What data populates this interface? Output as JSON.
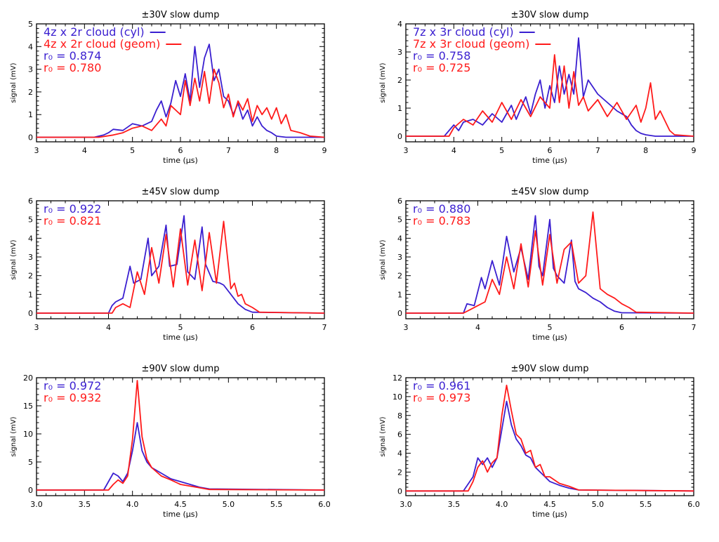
{
  "colors": {
    "blue": "#3a1fd0",
    "red": "#ff1a1a",
    "axis": "#000000"
  },
  "chart_data": [
    {
      "type": "line",
      "title": "±30V slow dump",
      "xlabel": "time (μs)",
      "ylabel": "signal (mV)",
      "xlim": [
        3,
        9
      ],
      "ylim": [
        -0.2,
        5
      ],
      "xticks": [
        "3",
        "4",
        "5",
        "6",
        "7",
        "8",
        "9"
      ],
      "yticks": [
        "0",
        "1",
        "2",
        "3",
        "4",
        "5"
      ],
      "legend": {
        "placement": "top-left",
        "lines": [
          {
            "text": "4z x 2r cloud (cyl)",
            "color": "blue",
            "swatch": true
          },
          {
            "text": "4z x 2r cloud (geom)",
            "color": "red",
            "swatch": true
          },
          {
            "text": "r₀ = 0.874",
            "color": "blue",
            "swatch": false
          },
          {
            "text": "r₀ = 0.780",
            "color": "red",
            "swatch": false
          }
        ]
      },
      "series": [
        {
          "name": "4z x 2r cloud (cyl)",
          "color": "blue",
          "x": [
            3.0,
            4.2,
            4.4,
            4.5,
            4.6,
            4.8,
            5.0,
            5.2,
            5.4,
            5.5,
            5.6,
            5.7,
            5.8,
            5.9,
            6.0,
            6.1,
            6.2,
            6.3,
            6.4,
            6.5,
            6.6,
            6.7,
            6.8,
            6.9,
            7.0,
            7.1,
            7.2,
            7.3,
            7.4,
            7.5,
            7.6,
            7.7,
            7.8,
            7.9,
            8.0,
            8.2,
            9.0
          ],
          "y": [
            0,
            0,
            0.1,
            0.2,
            0.35,
            0.3,
            0.6,
            0.5,
            0.7,
            1.2,
            1.6,
            0.9,
            1.5,
            2.5,
            1.8,
            2.8,
            1.6,
            4.0,
            2.2,
            3.5,
            4.1,
            2.5,
            3.0,
            1.8,
            1.6,
            1.0,
            1.5,
            0.8,
            1.2,
            0.5,
            0.9,
            0.5,
            0.3,
            0.2,
            0.05,
            0,
            0
          ]
        },
        {
          "name": "4z x 2r cloud (geom)",
          "color": "red",
          "x": [
            3.0,
            4.3,
            4.6,
            4.8,
            5.0,
            5.2,
            5.4,
            5.6,
            5.7,
            5.8,
            6.0,
            6.1,
            6.2,
            6.3,
            6.4,
            6.5,
            6.6,
            6.7,
            6.8,
            6.9,
            7.0,
            7.1,
            7.2,
            7.3,
            7.4,
            7.5,
            7.6,
            7.7,
            7.8,
            7.9,
            8.0,
            8.1,
            8.2,
            8.3,
            8.5,
            8.7,
            9.0
          ],
          "y": [
            0,
            0,
            0.1,
            0.2,
            0.4,
            0.5,
            0.3,
            0.8,
            0.5,
            1.4,
            1.0,
            2.5,
            1.4,
            2.6,
            1.6,
            2.9,
            1.5,
            3.0,
            2.4,
            1.3,
            1.9,
            0.9,
            1.6,
            1.2,
            1.7,
            0.7,
            1.4,
            1.0,
            1.3,
            0.8,
            1.3,
            0.6,
            1.0,
            0.3,
            0.2,
            0.05,
            0
          ]
        }
      ]
    },
    {
      "type": "line",
      "title": "±30V slow dump",
      "xlabel": "time (μs)",
      "ylabel": "signal (mV)",
      "xlim": [
        3,
        9
      ],
      "ylim": [
        -0.2,
        4
      ],
      "xticks": [
        "3",
        "4",
        "5",
        "6",
        "7",
        "8",
        "9"
      ],
      "yticks": [
        "0",
        "1",
        "2",
        "3",
        "4"
      ],
      "legend": {
        "placement": "top-left",
        "lines": [
          {
            "text": "7z x 3r cloud (cyl)",
            "color": "blue",
            "swatch": true
          },
          {
            "text": "7z x 3r cloud (geom)",
            "color": "red",
            "swatch": true
          },
          {
            "text": "r₀ = 0.758",
            "color": "blue",
            "swatch": false
          },
          {
            "text": "r₀ = 0.725",
            "color": "red",
            "swatch": false
          }
        ]
      },
      "series": [
        {
          "name": "7z x 3r cloud (cyl)",
          "color": "blue",
          "x": [
            3.0,
            3.8,
            3.9,
            4.0,
            4.1,
            4.2,
            4.4,
            4.6,
            4.8,
            5.0,
            5.2,
            5.3,
            5.5,
            5.6,
            5.7,
            5.8,
            5.9,
            6.0,
            6.1,
            6.2,
            6.3,
            6.4,
            6.5,
            6.6,
            6.7,
            6.8,
            7.0,
            7.2,
            7.4,
            7.6,
            7.7,
            7.8,
            7.9,
            8.0,
            8.2,
            9.0
          ],
          "y": [
            0,
            0,
            0.2,
            0.4,
            0.2,
            0.5,
            0.6,
            0.4,
            0.8,
            0.5,
            1.1,
            0.6,
            1.4,
            0.8,
            1.5,
            2.0,
            1.0,
            1.8,
            1.2,
            2.5,
            1.5,
            2.2,
            1.5,
            3.5,
            1.4,
            2.0,
            1.5,
            1.2,
            0.9,
            0.7,
            0.4,
            0.2,
            0.1,
            0.05,
            0,
            0
          ]
        },
        {
          "name": "7z x 3r cloud (geom)",
          "color": "red",
          "x": [
            3.0,
            3.9,
            4.0,
            4.2,
            4.4,
            4.6,
            4.8,
            5.0,
            5.2,
            5.4,
            5.6,
            5.8,
            6.0,
            6.1,
            6.2,
            6.3,
            6.4,
            6.5,
            6.6,
            6.7,
            6.8,
            7.0,
            7.2,
            7.4,
            7.6,
            7.8,
            7.9,
            8.0,
            8.1,
            8.2,
            8.3,
            8.5,
            8.6,
            9.0
          ],
          "y": [
            0,
            0,
            0.3,
            0.6,
            0.4,
            0.9,
            0.5,
            1.2,
            0.6,
            1.3,
            0.7,
            1.4,
            1.0,
            2.9,
            1.2,
            2.5,
            1.0,
            2.3,
            1.1,
            1.4,
            0.9,
            1.3,
            0.7,
            1.2,
            0.6,
            1.1,
            0.5,
            1.0,
            1.9,
            0.6,
            0.9,
            0.2,
            0.05,
            0
          ]
        }
      ]
    },
    {
      "type": "line",
      "title": "±45V slow dump",
      "xlabel": "time (μs)",
      "ylabel": "signal (mV)",
      "xlim": [
        3,
        7
      ],
      "ylim": [
        -0.3,
        6
      ],
      "xticks": [
        "3",
        "4",
        "5",
        "6",
        "7"
      ],
      "yticks": [
        "0",
        "1",
        "2",
        "3",
        "4",
        "5",
        "6"
      ],
      "legend": {
        "placement": "top-left",
        "lines": [
          {
            "text": "r₀ = 0.922",
            "color": "blue",
            "swatch": false
          },
          {
            "text": "r₀ = 0.821",
            "color": "red",
            "swatch": false
          }
        ]
      },
      "series": [
        {
          "name": "",
          "color": "blue",
          "x": [
            3.0,
            4.0,
            4.05,
            4.1,
            4.2,
            4.3,
            4.35,
            4.45,
            4.55,
            4.6,
            4.7,
            4.8,
            4.85,
            4.95,
            5.05,
            5.1,
            5.2,
            5.3,
            5.35,
            5.45,
            5.55,
            5.6,
            5.7,
            5.8,
            5.9,
            6.0,
            7.0
          ],
          "y": [
            0,
            0,
            0.4,
            0.6,
            0.8,
            2.5,
            1.6,
            1.8,
            4.0,
            2.0,
            2.5,
            4.7,
            2.5,
            2.6,
            5.2,
            2.2,
            1.8,
            4.6,
            2.6,
            1.7,
            1.6,
            1.5,
            1.0,
            0.5,
            0.2,
            0.05,
            0
          ]
        },
        {
          "name": "",
          "color": "red",
          "x": [
            3.0,
            4.05,
            4.1,
            4.2,
            4.3,
            4.4,
            4.5,
            4.6,
            4.7,
            4.8,
            4.9,
            5.0,
            5.1,
            5.2,
            5.3,
            5.4,
            5.5,
            5.6,
            5.7,
            5.75,
            5.8,
            5.85,
            5.9,
            6.0,
            6.1,
            7.0
          ],
          "y": [
            0,
            0,
            0.3,
            0.5,
            0.3,
            2.2,
            1.0,
            3.5,
            1.6,
            4.2,
            1.4,
            4.5,
            1.5,
            3.9,
            1.2,
            4.3,
            1.6,
            4.9,
            1.3,
            1.6,
            0.9,
            1.0,
            0.5,
            0.3,
            0.05,
            0
          ]
        }
      ]
    },
    {
      "type": "line",
      "title": "±45V slow dump",
      "xlabel": "time (μs)",
      "ylabel": "signal (mV)",
      "xlim": [
        3,
        7
      ],
      "ylim": [
        -0.3,
        6
      ],
      "xticks": [
        "3",
        "4",
        "5",
        "6",
        "7"
      ],
      "yticks": [
        "0",
        "1",
        "2",
        "3",
        "4",
        "5",
        "6"
      ],
      "legend": {
        "placement": "top-left",
        "lines": [
          {
            "text": "r₀ = 0.880",
            "color": "blue",
            "swatch": false
          },
          {
            "text": "r₀ = 0.783",
            "color": "red",
            "swatch": false
          }
        ]
      },
      "series": [
        {
          "name": "",
          "color": "blue",
          "x": [
            3.0,
            3.8,
            3.85,
            3.95,
            4.05,
            4.1,
            4.2,
            4.3,
            4.4,
            4.5,
            4.6,
            4.7,
            4.8,
            4.85,
            4.9,
            5.0,
            5.05,
            5.1,
            5.2,
            5.3,
            5.35,
            5.4,
            5.5,
            5.6,
            5.7,
            5.8,
            5.9,
            6.0,
            7.0
          ],
          "y": [
            0,
            0,
            0.5,
            0.4,
            1.9,
            1.3,
            2.8,
            1.5,
            4.1,
            2.2,
            3.5,
            1.8,
            5.2,
            2.5,
            2.0,
            5.0,
            2.4,
            2.0,
            1.6,
            3.9,
            1.7,
            1.3,
            1.1,
            0.8,
            0.6,
            0.3,
            0.1,
            0.02,
            0
          ]
        },
        {
          "name": "",
          "color": "red",
          "x": [
            3.0,
            3.8,
            3.9,
            4.0,
            4.1,
            4.2,
            4.3,
            4.4,
            4.5,
            4.6,
            4.7,
            4.8,
            4.9,
            5.0,
            5.1,
            5.2,
            5.3,
            5.4,
            5.5,
            5.6,
            5.7,
            5.8,
            5.9,
            6.0,
            6.1,
            6.2,
            7.0
          ],
          "y": [
            0,
            0,
            0.2,
            0.4,
            0.6,
            1.8,
            1.0,
            3.0,
            1.3,
            3.7,
            1.4,
            4.4,
            1.5,
            4.2,
            1.6,
            3.4,
            3.8,
            1.6,
            2.0,
            5.4,
            1.3,
            1.0,
            0.8,
            0.5,
            0.3,
            0.05,
            0
          ]
        }
      ]
    },
    {
      "type": "line",
      "title": "±90V slow dump",
      "xlabel": "time (μs)",
      "ylabel": "signal (mV)",
      "xlim": [
        3.0,
        6.0
      ],
      "ylim": [
        -1,
        20
      ],
      "xticks": [
        "3.0",
        "3.5",
        "4.0",
        "4.5",
        "5.0",
        "5.5",
        "6.0"
      ],
      "yticks": [
        "0",
        "5",
        "10",
        "15",
        "20"
      ],
      "legend": {
        "placement": "top-left",
        "lines": [
          {
            "text": "r₀ = 0.972",
            "color": "blue",
            "swatch": false
          },
          {
            "text": "r₀ = 0.932",
            "color": "red",
            "swatch": false
          }
        ]
      },
      "series": [
        {
          "name": "",
          "color": "blue",
          "x": [
            3.0,
            3.7,
            3.75,
            3.8,
            3.85,
            3.9,
            3.95,
            4.0,
            4.05,
            4.1,
            4.15,
            4.2,
            4.3,
            4.4,
            4.5,
            4.6,
            4.7,
            4.8,
            6.0
          ],
          "y": [
            0,
            0,
            1.5,
            3.0,
            2.5,
            1.5,
            3.0,
            7.0,
            12.0,
            7.0,
            5.0,
            4.0,
            3.0,
            2.0,
            1.5,
            1.0,
            0.5,
            0.2,
            0
          ]
        },
        {
          "name": "",
          "color": "red",
          "x": [
            3.0,
            3.75,
            3.8,
            3.85,
            3.9,
            3.95,
            4.0,
            4.05,
            4.1,
            4.15,
            4.2,
            4.3,
            4.4,
            4.5,
            4.6,
            4.7,
            4.8,
            6.0
          ],
          "y": [
            0,
            0,
            1.0,
            1.8,
            1.2,
            2.5,
            9.0,
            19.5,
            9.5,
            5.5,
            4.0,
            2.5,
            1.8,
            1.0,
            0.7,
            0.4,
            0.1,
            0
          ]
        }
      ]
    },
    {
      "type": "line",
      "title": "±90V slow dump",
      "xlabel": "time (μs)",
      "ylabel": "signal (mV)",
      "xlim": [
        3.0,
        6.0
      ],
      "ylim": [
        -0.5,
        12
      ],
      "xticks": [
        "3.0",
        "3.5",
        "4.0",
        "4.5",
        "5.0",
        "5.5",
        "6.0"
      ],
      "yticks": [
        "0",
        "2",
        "4",
        "6",
        "8",
        "10",
        "12"
      ],
      "legend": {
        "placement": "top-left",
        "lines": [
          {
            "text": "r₀ = 0.961",
            "color": "blue",
            "swatch": false
          },
          {
            "text": "r₀ = 0.973",
            "color": "red",
            "swatch": false
          }
        ]
      },
      "series": [
        {
          "name": "",
          "color": "blue",
          "x": [
            3.0,
            3.6,
            3.7,
            3.75,
            3.8,
            3.85,
            3.9,
            3.95,
            4.0,
            4.05,
            4.1,
            4.15,
            4.2,
            4.25,
            4.3,
            4.35,
            4.4,
            4.45,
            4.5,
            4.6,
            4.7,
            4.8,
            6.0
          ],
          "y": [
            0,
            0,
            1.5,
            3.5,
            2.8,
            3.5,
            2.5,
            3.5,
            6.5,
            9.5,
            7.0,
            5.5,
            4.8,
            3.8,
            3.5,
            2.5,
            2.0,
            1.5,
            1.0,
            0.6,
            0.3,
            0.1,
            0
          ]
        },
        {
          "name": "",
          "color": "red",
          "x": [
            3.0,
            3.65,
            3.7,
            3.75,
            3.8,
            3.85,
            3.9,
            3.95,
            4.0,
            4.05,
            4.1,
            4.15,
            4.2,
            4.25,
            4.3,
            4.35,
            4.4,
            4.45,
            4.5,
            4.6,
            4.7,
            4.8,
            6.0
          ],
          "y": [
            0,
            0,
            1.0,
            2.5,
            3.2,
            2.0,
            3.0,
            3.5,
            8.0,
            11.2,
            8.5,
            6.0,
            5.5,
            4.0,
            4.3,
            2.5,
            2.8,
            1.5,
            1.5,
            0.8,
            0.5,
            0.1,
            0
          ]
        }
      ]
    }
  ]
}
